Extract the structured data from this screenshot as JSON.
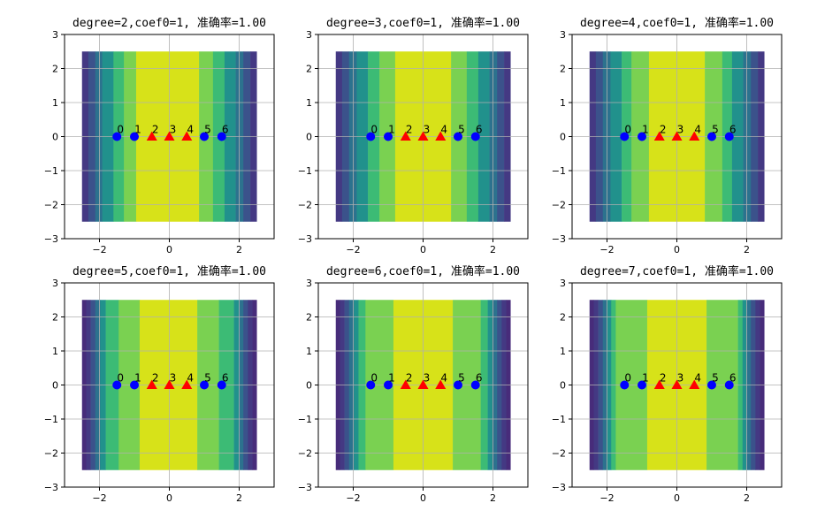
{
  "chart_data": [
    {
      "type": "scatter",
      "title": "degree=2,coef0=1, 准确率=1.00",
      "xlim": [
        -3,
        3
      ],
      "ylim": [
        -3,
        3
      ],
      "xticks": [
        -2,
        0,
        2
      ],
      "yticks": [
        -3,
        -2,
        -1,
        0,
        1,
        2,
        3
      ],
      "grid": true,
      "contour": {
        "x_range": [
          -2.5,
          2.5
        ],
        "y_range": [
          -2.5,
          2.5
        ],
        "band_edges": [
          -2.5,
          -2.32,
          -2.12,
          -1.92,
          -1.6,
          -1.3,
          -0.95,
          0.85,
          1.25,
          1.58,
          1.9,
          2.12,
          2.32,
          2.5
        ],
        "band_colors": [
          "#443983",
          "#3b528b",
          "#2c728e",
          "#21918c",
          "#3cbb75",
          "#7ad151",
          "#d7e219",
          "#7ad151",
          "#3cbb75",
          "#21918c",
          "#2c728e",
          "#3b528b",
          "#443983"
        ]
      },
      "points": {
        "x": [
          -1.5,
          -1,
          -0.5,
          0,
          0.5,
          1,
          1.5
        ],
        "y": [
          0,
          0,
          0,
          0,
          0,
          0,
          0
        ],
        "labels": [
          "0",
          "1",
          "2",
          "3",
          "4",
          "5",
          "6"
        ],
        "classes": [
          0,
          0,
          1,
          1,
          1,
          0,
          0
        ]
      }
    },
    {
      "type": "scatter",
      "title": "degree=3,coef0=1, 准确率=1.00",
      "xlim": [
        -3,
        3
      ],
      "ylim": [
        -3,
        3
      ],
      "xticks": [
        -2,
        0,
        2
      ],
      "yticks": [
        -3,
        -2,
        -1,
        0,
        1,
        2,
        3
      ],
      "grid": true,
      "contour": {
        "x_range": [
          -2.5,
          2.5
        ],
        "y_range": [
          -2.5,
          2.5
        ],
        "band_edges": [
          -2.5,
          -2.32,
          -2.12,
          -1.9,
          -1.58,
          -1.25,
          -0.8,
          0.8,
          1.25,
          1.58,
          1.9,
          2.12,
          2.32,
          2.5
        ],
        "band_colors": [
          "#443983",
          "#3b528b",
          "#2c728e",
          "#21918c",
          "#3cbb75",
          "#7ad151",
          "#d7e219",
          "#7ad151",
          "#3cbb75",
          "#21918c",
          "#2c728e",
          "#3b528b",
          "#443983"
        ]
      },
      "points": {
        "x": [
          -1.5,
          -1,
          -0.5,
          0,
          0.5,
          1,
          1.5
        ],
        "y": [
          0,
          0,
          0,
          0,
          0,
          0,
          0
        ],
        "labels": [
          "0",
          "1",
          "2",
          "3",
          "4",
          "5",
          "6"
        ],
        "classes": [
          0,
          0,
          1,
          1,
          1,
          0,
          0
        ]
      }
    },
    {
      "type": "scatter",
      "title": "degree=4,coef0=1, 准确率=1.00",
      "xlim": [
        -3,
        3
      ],
      "ylim": [
        -3,
        3
      ],
      "xticks": [
        -2,
        0,
        2
      ],
      "yticks": [
        -3,
        -2,
        -1,
        0,
        1,
        2,
        3
      ],
      "grid": true,
      "contour": {
        "x_range": [
          -2.5,
          2.5
        ],
        "y_range": [
          -2.5,
          2.5
        ],
        "band_edges": [
          -2.5,
          -2.32,
          -2.12,
          -1.9,
          -1.58,
          -1.3,
          -0.8,
          0.8,
          1.3,
          1.58,
          1.9,
          2.12,
          2.32,
          2.5
        ],
        "band_colors": [
          "#443983",
          "#3b528b",
          "#2c728e",
          "#21918c",
          "#3cbb75",
          "#7ad151",
          "#d7e219",
          "#7ad151",
          "#3cbb75",
          "#21918c",
          "#2c728e",
          "#3b528b",
          "#443983"
        ]
      },
      "points": {
        "x": [
          -1.5,
          -1,
          -0.5,
          0,
          0.5,
          1,
          1.5
        ],
        "y": [
          0,
          0,
          0,
          0,
          0,
          0,
          0
        ],
        "labels": [
          "0",
          "1",
          "2",
          "3",
          "4",
          "5",
          "6"
        ],
        "classes": [
          0,
          0,
          1,
          1,
          1,
          0,
          0
        ]
      }
    },
    {
      "type": "scatter",
      "title": "degree=5,coef0=1, 准确率=1.00",
      "xlim": [
        -3,
        3
      ],
      "ylim": [
        -3,
        3
      ],
      "xticks": [
        -2,
        0,
        2
      ],
      "yticks": [
        -3,
        -2,
        -1,
        0,
        1,
        2,
        3
      ],
      "grid": true,
      "contour": {
        "x_range": [
          -2.5,
          2.5
        ],
        "y_range": [
          -2.5,
          2.5
        ],
        "band_edges": [
          -2.5,
          -2.38,
          -2.25,
          -2.12,
          -1.98,
          -1.82,
          -1.45,
          -0.85,
          0.8,
          1.42,
          1.85,
          2.0,
          2.12,
          2.25,
          2.38,
          2.5
        ],
        "band_colors": [
          "#472c7a",
          "#443983",
          "#3b528b",
          "#2c728e",
          "#21918c",
          "#3cbb75",
          "#7ad151",
          "#d7e219",
          "#7ad151",
          "#3cbb75",
          "#21918c",
          "#2c728e",
          "#3b528b",
          "#443983",
          "#472c7a"
        ]
      },
      "points": {
        "x": [
          -1.5,
          -1,
          -0.5,
          0,
          0.5,
          1,
          1.5
        ],
        "y": [
          0,
          0,
          0,
          0,
          0,
          0,
          0
        ],
        "labels": [
          "0",
          "1",
          "2",
          "3",
          "4",
          "5",
          "6"
        ],
        "classes": [
          0,
          0,
          1,
          1,
          1,
          0,
          0
        ]
      }
    },
    {
      "type": "scatter",
      "title": "degree=6,coef0=1, 准确率=1.00",
      "xlim": [
        -3,
        3
      ],
      "ylim": [
        -3,
        3
      ],
      "xticks": [
        -2,
        0,
        2
      ],
      "yticks": [
        -3,
        -2,
        -1,
        0,
        1,
        2,
        3
      ],
      "grid": true,
      "contour": {
        "x_range": [
          -2.5,
          2.5
        ],
        "y_range": [
          -2.5,
          2.5
        ],
        "band_edges": [
          -2.5,
          -2.38,
          -2.25,
          -2.12,
          -1.98,
          -1.85,
          -1.65,
          -0.85,
          0.85,
          1.65,
          1.85,
          1.98,
          2.12,
          2.25,
          2.38,
          2.5
        ],
        "band_colors": [
          "#472c7a",
          "#443983",
          "#3b528b",
          "#2c728e",
          "#21918c",
          "#3cbb75",
          "#7ad151",
          "#d7e219",
          "#7ad151",
          "#3cbb75",
          "#21918c",
          "#2c728e",
          "#3b528b",
          "#443983",
          "#472c7a"
        ]
      },
      "points": {
        "x": [
          -1.5,
          -1,
          -0.5,
          0,
          0.5,
          1,
          1.5
        ],
        "y": [
          0,
          0,
          0,
          0,
          0,
          0,
          0
        ],
        "labels": [
          "0",
          "1",
          "2",
          "3",
          "4",
          "5",
          "6"
        ],
        "classes": [
          0,
          0,
          1,
          1,
          1,
          0,
          0
        ]
      }
    },
    {
      "type": "scatter",
      "title": "degree=7,coef0=1, 准确率=1.00",
      "xlim": [
        -3,
        3
      ],
      "ylim": [
        -3,
        3
      ],
      "xticks": [
        -2,
        0,
        2
      ],
      "yticks": [
        -3,
        -2,
        -1,
        0,
        1,
        2,
        3
      ],
      "grid": true,
      "contour": {
        "x_range": [
          -2.5,
          2.5
        ],
        "y_range": [
          -2.5,
          2.5
        ],
        "band_edges": [
          -2.5,
          -2.38,
          -2.25,
          -2.12,
          -2.0,
          -1.88,
          -1.75,
          -0.85,
          0.85,
          1.75,
          1.88,
          2.0,
          2.12,
          2.25,
          2.38,
          2.5
        ],
        "band_colors": [
          "#472c7a",
          "#443983",
          "#3b528b",
          "#2c728e",
          "#21918c",
          "#3cbb75",
          "#7ad151",
          "#d7e219",
          "#7ad151",
          "#3cbb75",
          "#21918c",
          "#2c728e",
          "#3b528b",
          "#443983",
          "#472c7a"
        ]
      },
      "points": {
        "x": [
          -1.5,
          -1,
          -0.5,
          0,
          0.5,
          1,
          1.5
        ],
        "y": [
          0,
          0,
          0,
          0,
          0,
          0,
          0
        ],
        "labels": [
          "0",
          "1",
          "2",
          "3",
          "4",
          "5",
          "6"
        ],
        "classes": [
          0,
          0,
          1,
          1,
          1,
          0,
          0
        ]
      }
    }
  ],
  "colors": {
    "class_0": "#0000ff",
    "class_1": "#ff0000",
    "grid": "#b0b0b0",
    "axes": "#000000"
  },
  "markers": {
    "class_0": "circle",
    "class_1": "triangle"
  }
}
